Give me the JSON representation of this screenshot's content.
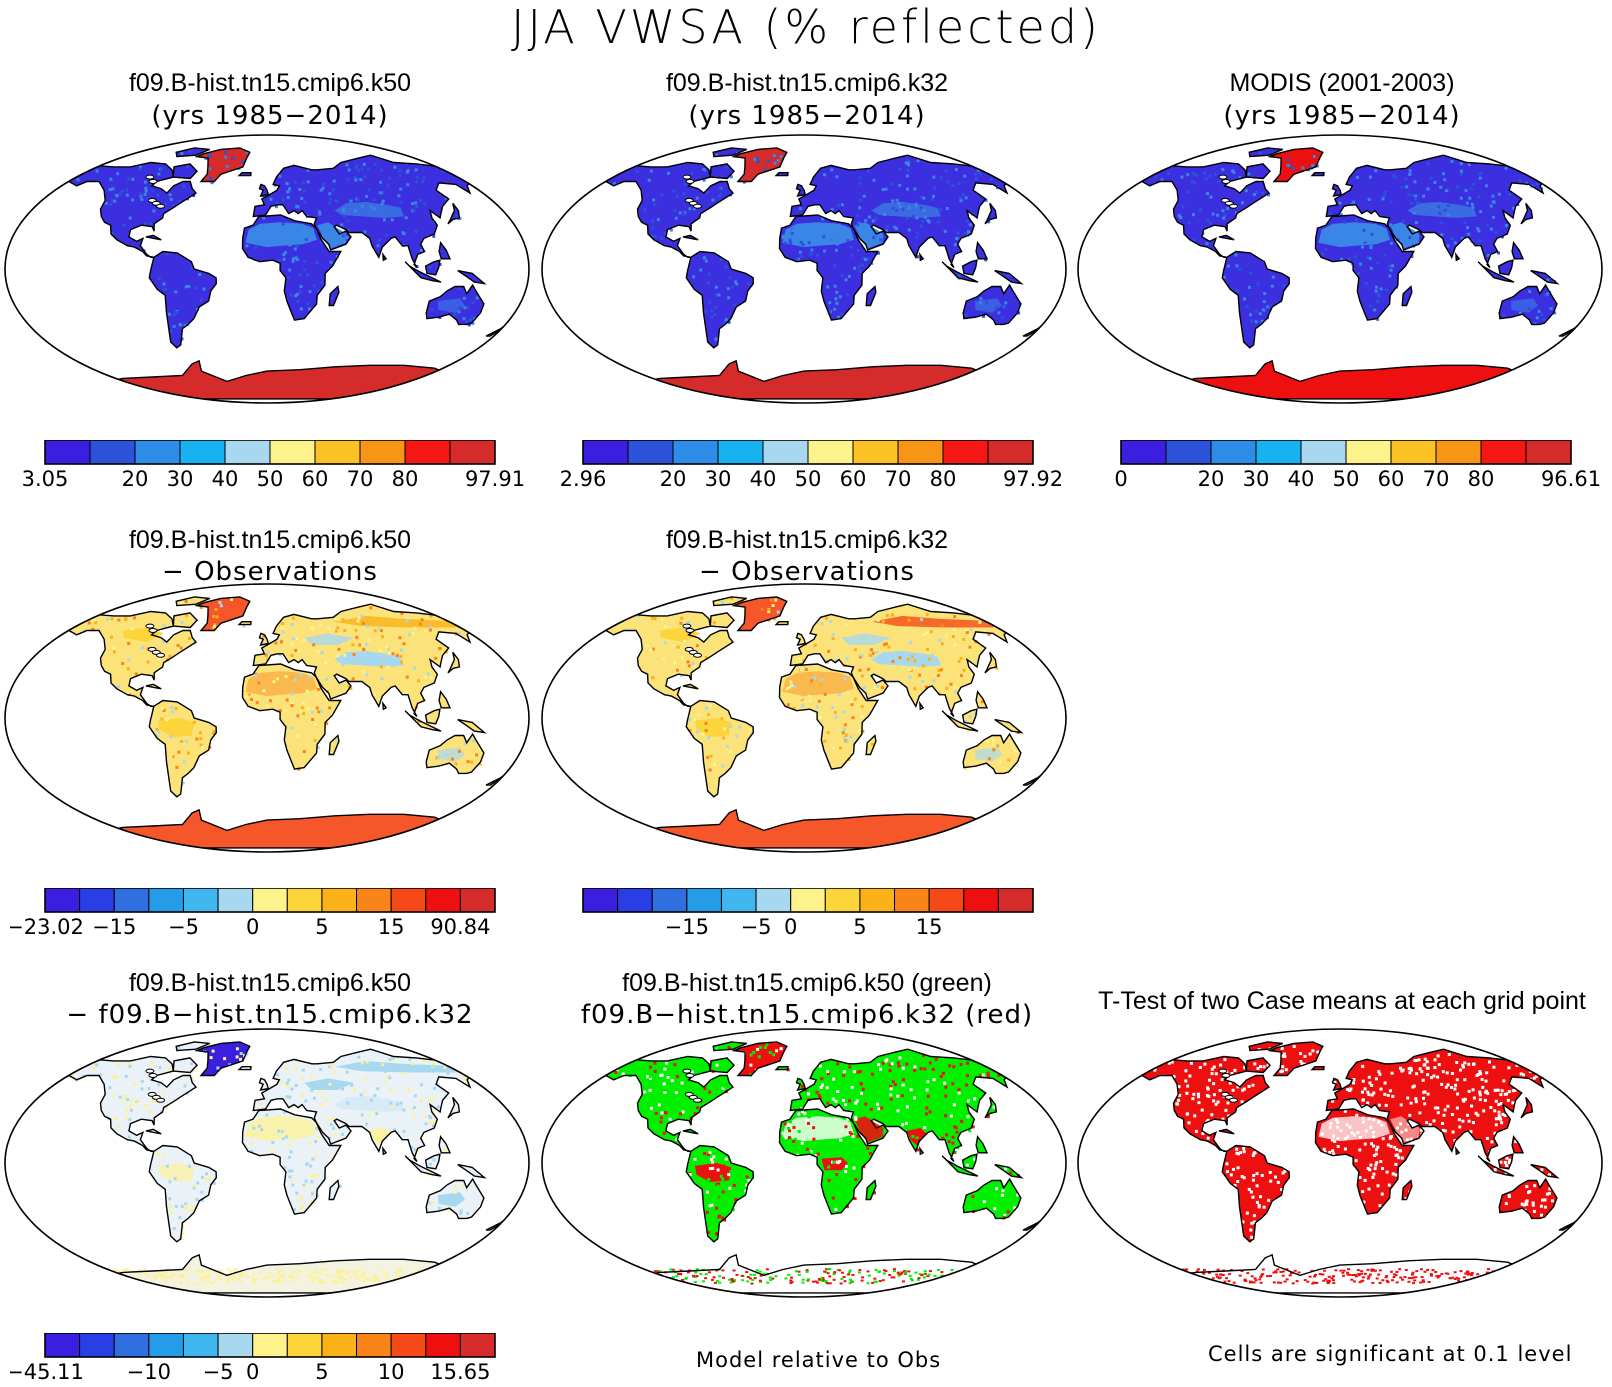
{
  "title": "JJA VWSA (% reflected)",
  "palettes": {
    "abs": [
      "#3b1fe0",
      "#2b52d8",
      "#2d8ce8",
      "#17b2ef",
      "#a8d8f0",
      "#fdf28c",
      "#fbc125",
      "#f89517",
      "#f51714",
      "#d52b2b"
    ],
    "diff": [
      "#3b1fe0",
      "#2a3ee6",
      "#2f6fe0",
      "#249ce8",
      "#40b6ee",
      "#a8d8f0",
      "#fdf28c",
      "#fbd53a",
      "#fbb118",
      "#f8841a",
      "#f54a18",
      "#ee1010",
      "#d52b2b"
    ],
    "diff_row2": [
      "#3b1fe0",
      "#2a3ee6",
      "#2f6fe0",
      "#249ce8",
      "#40b6ee",
      "#a8d8f0",
      "#fdf28c",
      "#fbd53a",
      "#fbb118",
      "#f8841a",
      "#f54a18",
      "#ee1010"
    ],
    "land_colors": {
      "abs_land": "#3b2fe0",
      "abs_desert": "#3a86e6",
      "abs_ice": "#d52b2b",
      "obs_ice": "#ee1010",
      "diff_land": "#fbe37a",
      "diff_blue": "#a8d8f0",
      "diff_hot": "#f8841a",
      "diff_ice": "#f5562a",
      "cc_land": "#eaf2f8",
      "cc_yellow": "#fdf28c",
      "sig_green": "#00f000",
      "sig_red": "#ee1010"
    }
  },
  "panels": [
    {
      "id": "p1",
      "title": "f09.B-hist.tn15.cmip6.k50",
      "subtitle": "(yrs 1985−2014)",
      "scheme": "model",
      "colorbar": {
        "palette": "abs",
        "labels": [
          "3.05",
          "20",
          "30",
          "40",
          "50",
          "60",
          "70",
          "80",
          "97.91"
        ]
      }
    },
    {
      "id": "p2",
      "title": "f09.B-hist.tn15.cmip6.k32",
      "subtitle": "(yrs 1985−2014)",
      "scheme": "model",
      "colorbar": {
        "palette": "abs",
        "labels": [
          "2.96",
          "20",
          "30",
          "40",
          "50",
          "60",
          "70",
          "80",
          "97.92"
        ]
      }
    },
    {
      "id": "p3",
      "title": "MODIS (2001-2003)",
      "subtitle": "(yrs 1985−2014)",
      "scheme": "obs",
      "colorbar": {
        "palette": "abs",
        "labels": [
          "0",
          "20",
          "30",
          "40",
          "50",
          "60",
          "70",
          "80",
          "96.61"
        ]
      }
    },
    {
      "id": "p4",
      "title": "f09.B-hist.tn15.cmip6.k50",
      "subtitle": "− Observations",
      "scheme": "diff",
      "colorbar": {
        "palette": "diff",
        "labels": [
          "−23.02",
          "−15",
          "−5",
          "0",
          "5",
          "15",
          "90.84"
        ]
      }
    },
    {
      "id": "p5",
      "title": "f09.B-hist.tn15.cmip6.k32",
      "subtitle": "− Observations",
      "scheme": "diff",
      "colorbar": {
        "palette": "diff",
        "labels": [
          "−15",
          "−5",
          "0",
          "5",
          "15"
        ]
      }
    },
    {
      "id": "p6",
      "title": "f09.B-hist.tn15.cmip6.k50",
      "subtitle": "− f09.B−hist.tn15.cmip6.k32",
      "scheme": "case",
      "colorbar": {
        "palette": "diff",
        "labels": [
          "−45.11",
          "−10",
          "−5",
          "0",
          "5",
          "10",
          "15.65"
        ]
      }
    },
    {
      "id": "p7",
      "title": "f09.B-hist.tn15.cmip6.k50 (green)",
      "subtitle": "f09.B−hist.tn15.cmip6.k32 (red)",
      "scheme": "rg"
    },
    {
      "id": "p8",
      "title": "T-Test of two Case means at each grid point",
      "subtitle": "",
      "scheme": "ttest"
    }
  ],
  "footnotes": {
    "model_relative": "Model relative to Obs",
    "significance": "Cells are significant at 0.1 level"
  }
}
